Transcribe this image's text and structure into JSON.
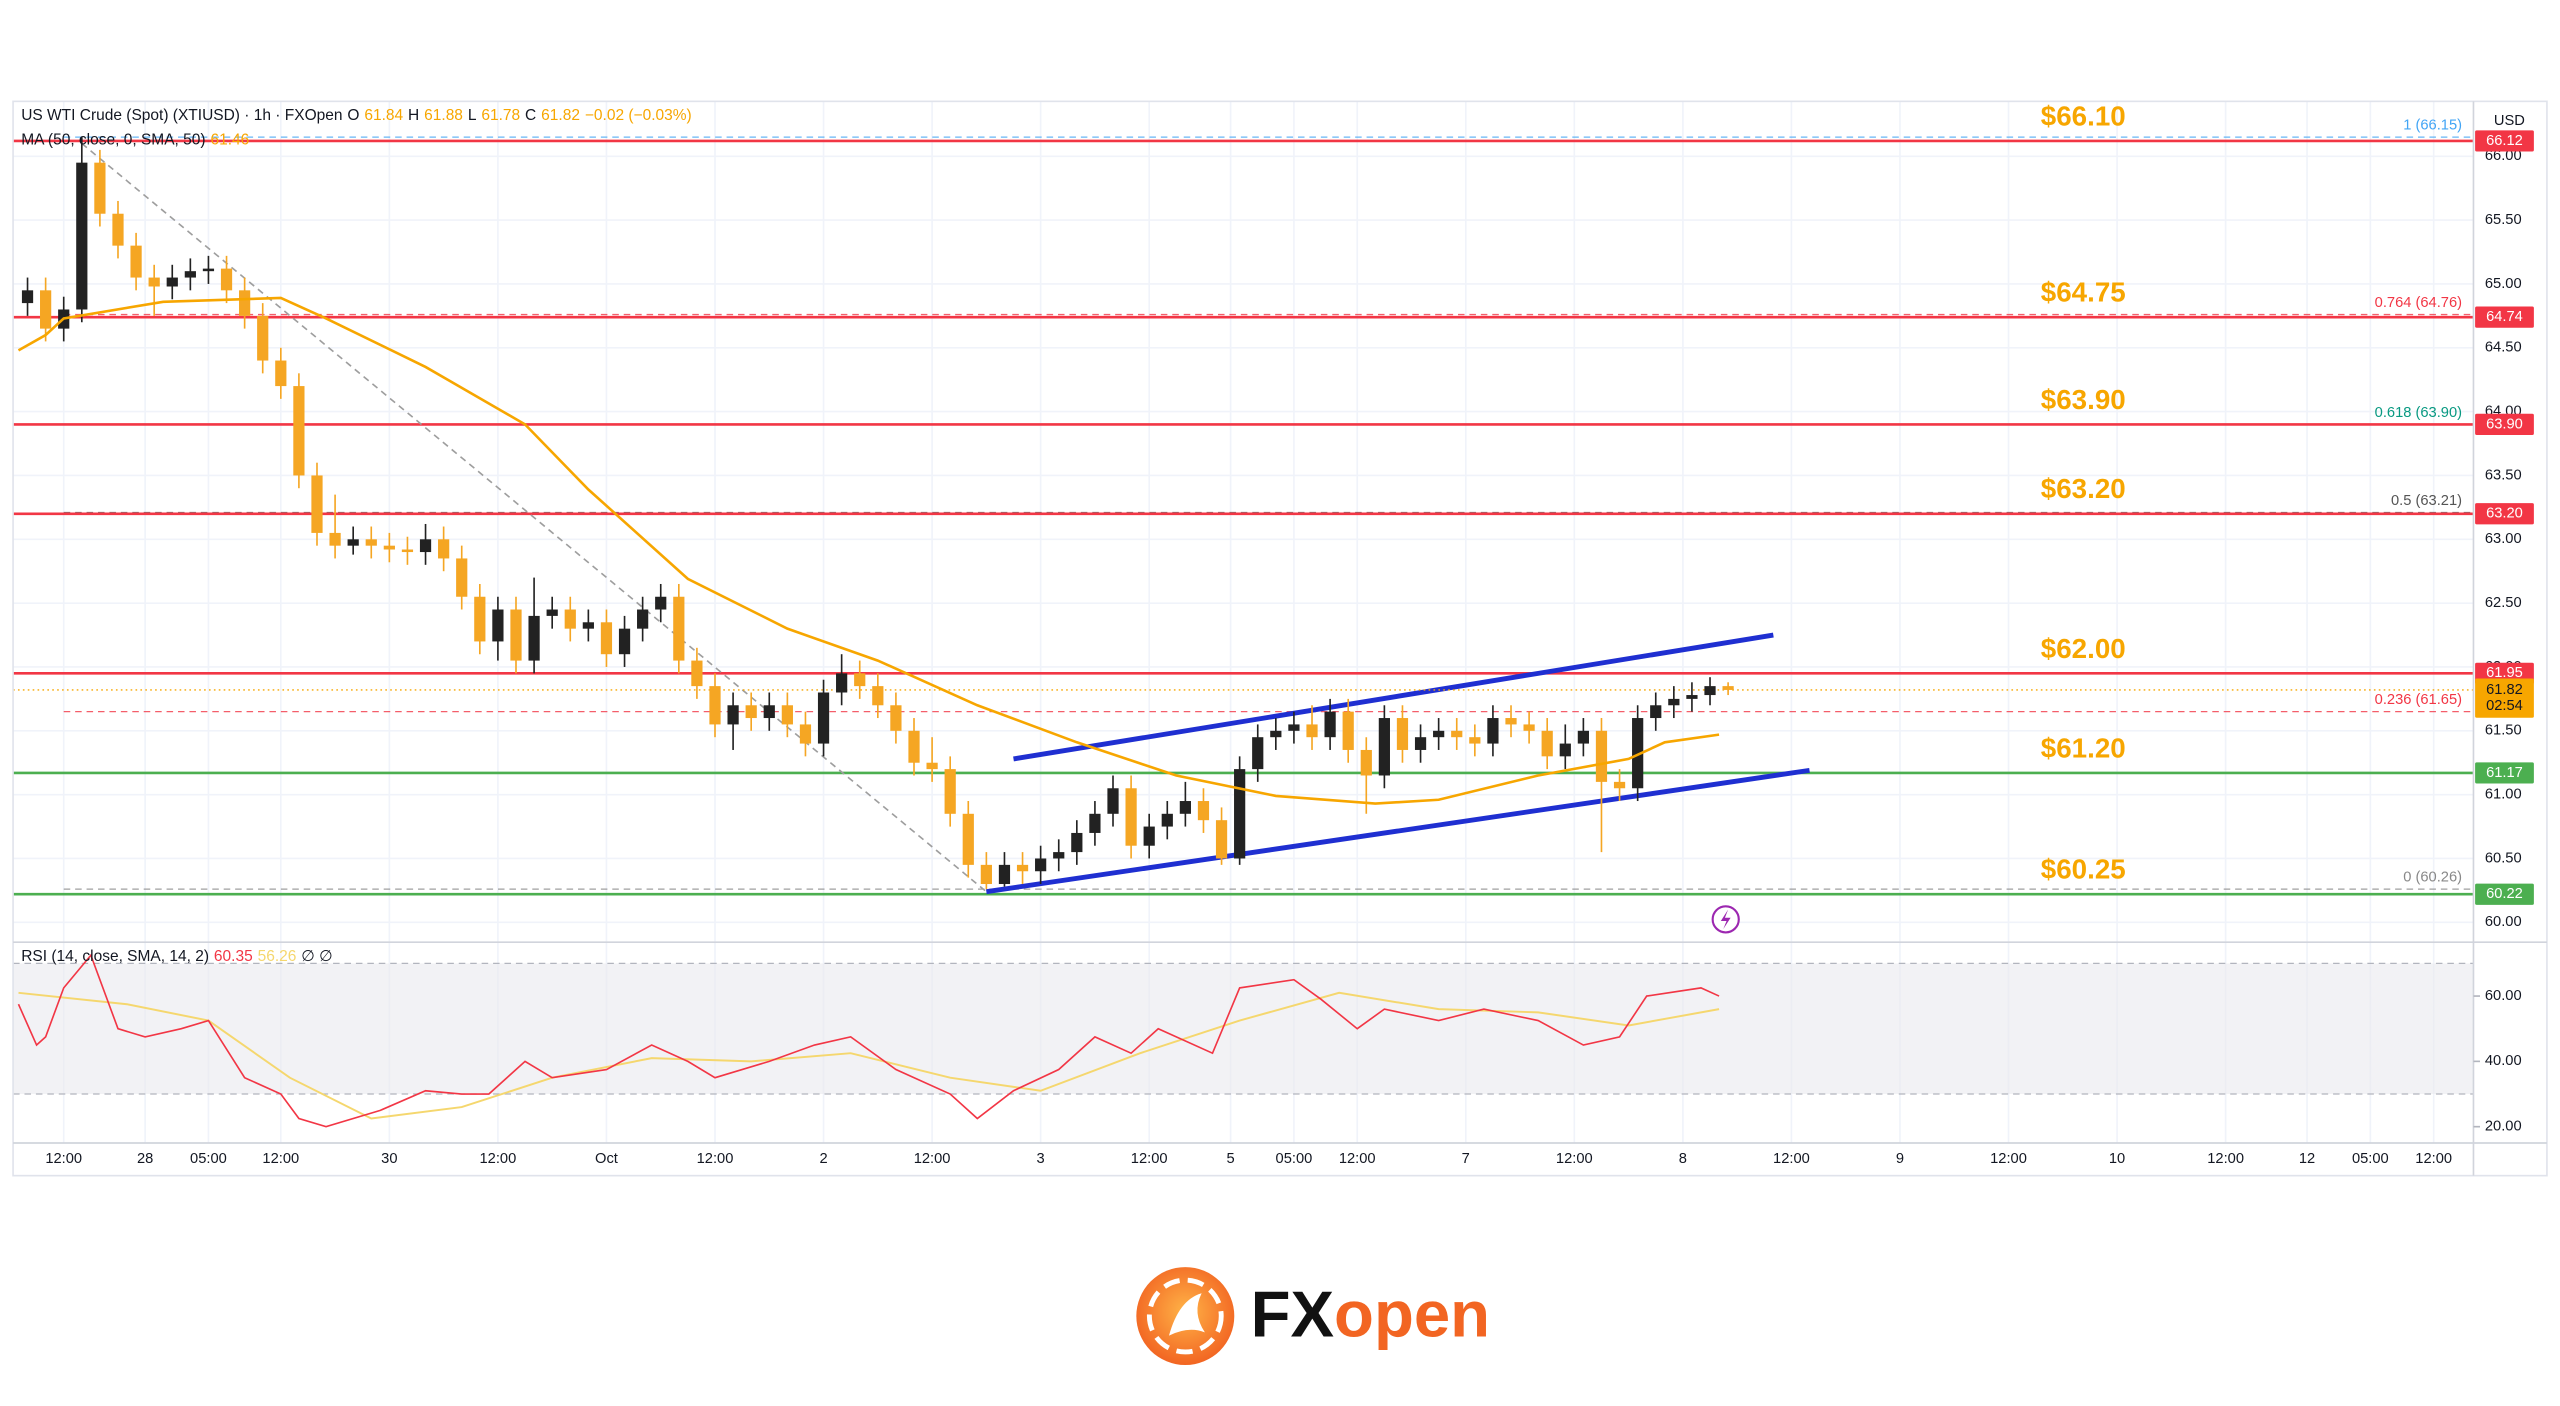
{
  "chart_data": {
    "type": "candlestick",
    "title": "US WTI Crude (Spot) (XTIUSD) · 1h · FXOpen",
    "ohlc_legend": [
      "O",
      "61.84",
      "H",
      "61.88",
      "L",
      "61.78",
      "C",
      "61.82",
      "−0.02 (−0.03%)"
    ],
    "currency": "USD",
    "up_color": "#222222",
    "down_color": "#f5a623",
    "x": [
      -4,
      -2,
      0,
      2,
      4,
      6,
      8,
      10,
      12,
      14,
      16,
      18,
      20,
      22,
      24,
      26,
      28,
      30,
      32,
      34,
      36,
      38,
      40,
      42,
      44,
      46,
      48,
      50,
      52,
      54,
      56,
      58,
      60,
      62,
      64,
      66,
      68,
      70,
      72,
      74,
      76,
      78,
      80,
      82,
      84,
      86,
      88,
      90,
      92,
      94,
      96,
      98,
      100,
      102,
      104,
      106,
      108,
      110,
      112,
      114,
      116,
      118,
      120,
      122,
      124,
      126,
      128,
      130,
      132,
      134,
      136,
      138,
      140,
      142,
      144,
      146,
      148,
      150,
      152,
      154,
      156,
      158,
      160,
      162,
      164,
      166,
      168,
      170,
      172,
      174,
      176,
      178,
      180,
      182,
      184
    ],
    "open": [
      64.85,
      64.95,
      64.65,
      64.8,
      65.95,
      65.55,
      65.3,
      65.05,
      64.98,
      65.05,
      65.1,
      65.12,
      64.95,
      64.75,
      64.4,
      64.2,
      63.5,
      63.05,
      62.95,
      63.0,
      62.95,
      62.92,
      62.9,
      63.0,
      62.85,
      62.55,
      62.2,
      62.45,
      62.05,
      62.4,
      62.45,
      62.3,
      62.35,
      62.1,
      62.3,
      62.45,
      62.55,
      62.05,
      61.85,
      61.55,
      61.7,
      61.6,
      61.7,
      61.55,
      61.4,
      61.8,
      61.95,
      61.85,
      61.7,
      61.5,
      61.25,
      61.2,
      60.85,
      60.45,
      60.3,
      60.45,
      60.4,
      60.5,
      60.55,
      60.7,
      60.85,
      61.05,
      60.6,
      60.75,
      60.85,
      60.95,
      60.8,
      60.5,
      61.2,
      61.45,
      61.5,
      61.55,
      61.45,
      61.65,
      61.35,
      61.15,
      61.6,
      61.35,
      61.45,
      61.5,
      61.45,
      61.4,
      61.6,
      61.55,
      61.5,
      61.3,
      61.4,
      61.5,
      61.1,
      61.05,
      61.6,
      61.7,
      61.75,
      61.78,
      61.85
    ],
    "high": [
      65.05,
      65.05,
      64.9,
      66.15,
      66.05,
      65.65,
      65.4,
      65.15,
      65.15,
      65.2,
      65.22,
      65.22,
      65.05,
      64.85,
      64.5,
      64.3,
      63.6,
      63.35,
      63.1,
      63.1,
      63.05,
      63.02,
      63.12,
      63.1,
      62.95,
      62.65,
      62.55,
      62.55,
      62.7,
      62.55,
      62.55,
      62.45,
      62.45,
      62.4,
      62.55,
      62.65,
      62.65,
      62.15,
      61.95,
      61.8,
      61.8,
      61.8,
      61.8,
      61.65,
      61.9,
      62.1,
      62.05,
      61.95,
      61.8,
      61.6,
      61.45,
      61.3,
      60.95,
      60.55,
      60.55,
      60.55,
      60.6,
      60.65,
      60.8,
      60.95,
      61.15,
      61.15,
      60.85,
      60.95,
      61.1,
      61.05,
      60.9,
      61.3,
      61.55,
      61.6,
      61.65,
      61.7,
      61.75,
      61.75,
      61.45,
      61.7,
      61.7,
      61.55,
      61.6,
      61.6,
      61.55,
      61.7,
      61.7,
      61.65,
      61.6,
      61.55,
      61.6,
      61.6,
      61.2,
      61.7,
      61.8,
      61.85,
      61.88,
      61.92,
      61.88
    ],
    "low": [
      64.75,
      64.55,
      64.55,
      64.7,
      65.45,
      65.2,
      64.95,
      64.75,
      64.88,
      64.95,
      65.0,
      64.85,
      64.65,
      64.3,
      64.1,
      63.4,
      62.95,
      62.85,
      62.88,
      62.85,
      62.82,
      62.8,
      62.8,
      62.75,
      62.45,
      62.1,
      62.05,
      61.95,
      61.95,
      62.3,
      62.2,
      62.2,
      62.0,
      62.0,
      62.2,
      62.35,
      61.95,
      61.75,
      61.45,
      61.35,
      61.5,
      61.5,
      61.45,
      61.3,
      61.3,
      61.7,
      61.75,
      61.6,
      61.4,
      61.15,
      61.1,
      60.75,
      60.35,
      60.26,
      60.28,
      60.3,
      60.3,
      60.4,
      60.45,
      60.6,
      60.75,
      60.5,
      60.5,
      60.65,
      60.75,
      60.7,
      60.45,
      60.45,
      61.1,
      61.35,
      61.4,
      61.35,
      61.35,
      61.25,
      60.85,
      61.05,
      61.25,
      61.25,
      61.35,
      61.35,
      61.3,
      61.3,
      61.45,
      61.4,
      61.2,
      61.2,
      61.3,
      60.55,
      60.95,
      60.95,
      61.5,
      61.6,
      61.65,
      61.7,
      61.78
    ],
    "close": [
      64.95,
      64.65,
      64.8,
      65.95,
      65.55,
      65.3,
      65.05,
      64.98,
      65.05,
      65.1,
      65.12,
      64.95,
      64.75,
      64.4,
      64.2,
      63.5,
      63.05,
      62.95,
      63.0,
      62.95,
      62.92,
      62.9,
      63.0,
      62.85,
      62.55,
      62.2,
      62.45,
      62.05,
      62.4,
      62.45,
      62.3,
      62.35,
      62.1,
      62.3,
      62.45,
      62.55,
      62.05,
      61.85,
      61.55,
      61.7,
      61.6,
      61.7,
      61.55,
      61.4,
      61.8,
      61.95,
      61.85,
      61.7,
      61.5,
      61.25,
      61.2,
      60.85,
      60.45,
      60.3,
      60.45,
      60.4,
      60.5,
      60.55,
      60.7,
      60.85,
      61.05,
      60.6,
      60.75,
      60.85,
      60.95,
      60.8,
      60.5,
      61.2,
      61.45,
      61.5,
      61.55,
      61.45,
      61.65,
      61.35,
      61.15,
      61.6,
      61.35,
      61.45,
      61.5,
      61.45,
      61.4,
      61.6,
      61.55,
      61.5,
      61.3,
      61.4,
      61.5,
      61.1,
      61.05,
      61.6,
      61.7,
      61.75,
      61.78,
      61.85,
      61.82
    ],
    "xlim": [
      -5.6,
      266.4
    ],
    "xticks": [
      {
        "value": 0,
        "label": "12:00"
      },
      {
        "value": 9,
        "label": "28"
      },
      {
        "value": 16,
        "label": "05:00"
      },
      {
        "value": 24,
        "label": "12:00"
      },
      {
        "value": 36,
        "label": "30"
      },
      {
        "value": 48,
        "label": "12:00"
      },
      {
        "value": 60,
        "label": "Oct"
      },
      {
        "value": 72,
        "label": "12:00"
      },
      {
        "value": 84,
        "label": "2"
      },
      {
        "value": 96,
        "label": "12:00"
      },
      {
        "value": 108,
        "label": "3"
      },
      {
        "value": 120,
        "label": "12:00"
      },
      {
        "value": 129,
        "label": "5"
      },
      {
        "value": 136,
        "label": "05:00"
      },
      {
        "value": 143,
        "label": "12:00"
      },
      {
        "value": 155,
        "label": "7"
      },
      {
        "value": 167,
        "label": "12:00"
      },
      {
        "value": 179,
        "label": "8"
      },
      {
        "value": 191,
        "label": "12:00"
      },
      {
        "value": 203,
        "label": "9"
      },
      {
        "value": 215,
        "label": "12:00"
      },
      {
        "value": 227,
        "label": "10"
      },
      {
        "value": 239,
        "label": "12:00"
      },
      {
        "value": 248,
        "label": "12"
      },
      {
        "value": 255,
        "label": "05:00"
      },
      {
        "value": 262,
        "label": "12:00"
      }
    ],
    "ylim": [
      59.87,
      66.43
    ],
    "yticks": [
      {
        "value": 60,
        "label": "60.00"
      },
      {
        "value": 60.5,
        "label": "60.50"
      },
      {
        "value": 61,
        "label": "61.00"
      },
      {
        "value": 61.5,
        "label": "61.50"
      },
      {
        "value": 62,
        "label": "62.00"
      },
      {
        "value": 62.5,
        "label": "62.50"
      },
      {
        "value": 63,
        "label": "63.00"
      },
      {
        "value": 63.5,
        "label": "63.50"
      },
      {
        "value": 64,
        "label": "64.00"
      },
      {
        "value": 64.5,
        "label": "64.50"
      },
      {
        "value": 65,
        "label": "65.00"
      },
      {
        "value": 65.5,
        "label": "65.50"
      },
      {
        "value": 66,
        "label": "66.00"
      }
    ],
    "grid": true,
    "ma": {
      "legend": [
        "MA (50, close, 0, SMA, 50)",
        "61.46"
      ],
      "color": "#f7a600",
      "x": [
        -5,
        -2,
        0,
        11,
        24,
        29,
        40,
        51,
        58,
        69,
        80,
        90,
        101,
        112,
        123,
        134,
        145,
        152,
        163,
        173,
        177,
        183
      ],
      "values": [
        64.48,
        64.6,
        64.73,
        64.86,
        64.89,
        64.73,
        64.35,
        63.9,
        63.39,
        62.69,
        62.3,
        62.05,
        61.7,
        61.41,
        61.15,
        60.99,
        60.93,
        60.96,
        61.15,
        61.28,
        61.41,
        61.47
      ]
    },
    "levels": [
      {
        "value": 66.12,
        "label": "66.12",
        "color": "#f23645",
        "note": "$66.10"
      },
      {
        "value": 64.74,
        "label": "64.74",
        "color": "#f23645",
        "note": "$64.75"
      },
      {
        "value": 63.9,
        "label": "63.90",
        "color": "#f23645",
        "note": "$63.90"
      },
      {
        "value": 63.2,
        "label": "63.20",
        "color": "#f23645",
        "note": "$63.20"
      },
      {
        "value": 61.95,
        "label": "61.95",
        "color": "#f23645",
        "note": "$62.00"
      },
      {
        "value": 61.17,
        "label": "61.17",
        "color": "#4caf50",
        "note": "$61.20"
      },
      {
        "value": 60.22,
        "label": "60.22",
        "color": "#4caf50",
        "note": "$60.25"
      }
    ],
    "note_color": "#f7a600",
    "fib_levels": [
      {
        "value": 66.15,
        "label": "1 (66.15)",
        "color": "#42a5f5"
      },
      {
        "value": 64.76,
        "label": "0.764 (64.76)",
        "color": "#f23645"
      },
      {
        "value": 63.9,
        "label": "0.618 (63.90)",
        "color": "#089981"
      },
      {
        "value": 63.21,
        "label": "0.5 (63.21)",
        "color": "#555555"
      },
      {
        "value": 61.65,
        "label": "0.236 (61.65)",
        "color": "#f23645"
      },
      {
        "value": 60.26,
        "label": "0 (60.26)",
        "color": "#888888"
      }
    ],
    "trendlines": [
      {
        "x": [
          105,
          189
        ],
        "y": [
          61.28,
          62.25
        ],
        "color": "#1f2fd1",
        "style": "solid"
      },
      {
        "x": [
          102,
          193
        ],
        "y": [
          60.24,
          61.19
        ],
        "color": "#1f2fd1",
        "style": "solid"
      },
      {
        "x": [
          2,
          102
        ],
        "y": [
          66.1,
          60.24
        ],
        "color": "#9e9e9e",
        "style": "dashed"
      }
    ],
    "last_price": {
      "value": 61.82,
      "label": "61.82",
      "countdown": "02:54",
      "color": "#f7a600"
    },
    "rsi": {
      "legend": [
        "RSI (14, close, SMA, 14, 2)",
        "60.35",
        "56.26",
        "∅ ∅"
      ],
      "color": "#f23645",
      "ma_color": "#f5d76e",
      "x": [
        -5,
        -3,
        -2,
        0,
        3,
        6,
        9,
        13,
        16,
        20,
        24,
        26,
        29,
        35,
        40,
        44,
        47,
        51,
        54,
        60,
        65,
        69,
        72,
        78,
        83,
        87,
        92,
        98,
        101,
        105,
        110,
        114,
        118,
        121,
        127,
        130,
        136,
        139,
        143,
        146,
        152,
        157,
        163,
        168,
        172,
        175,
        181,
        183
      ],
      "values": [
        57.5,
        45,
        47.5,
        62.5,
        72.5,
        50,
        47.5,
        50,
        52.5,
        35,
        30,
        22.5,
        20,
        25,
        31,
        30,
        30,
        40,
        35,
        37.5,
        45,
        40,
        35,
        40,
        45,
        47.5,
        37.5,
        30,
        22.5,
        31,
        37.5,
        47.5,
        42.5,
        50,
        42.5,
        62.5,
        65,
        59,
        50,
        56,
        52.5,
        56,
        52.5,
        45,
        47.5,
        60,
        62.5,
        60
      ],
      "ma_x": [
        -5,
        7,
        16,
        25,
        34,
        44,
        54,
        65,
        76,
        87,
        98,
        108,
        119,
        130,
        141,
        152,
        163,
        173,
        183
      ],
      "ma_values": [
        61,
        57.5,
        52.5,
        35,
        22.5,
        26,
        35,
        41,
        40,
        42.5,
        35,
        31,
        42.5,
        52.5,
        61,
        56,
        55,
        51,
        56
      ],
      "ylim": [
        15,
        76
      ],
      "yticks": [
        {
          "value": 20,
          "label": "20.00"
        },
        {
          "value": 40,
          "label": "40.00"
        },
        {
          "value": 60,
          "label": "60.00"
        }
      ],
      "band": [
        30,
        70
      ]
    }
  },
  "logo": {
    "text": [
      "FX",
      "open"
    ]
  }
}
